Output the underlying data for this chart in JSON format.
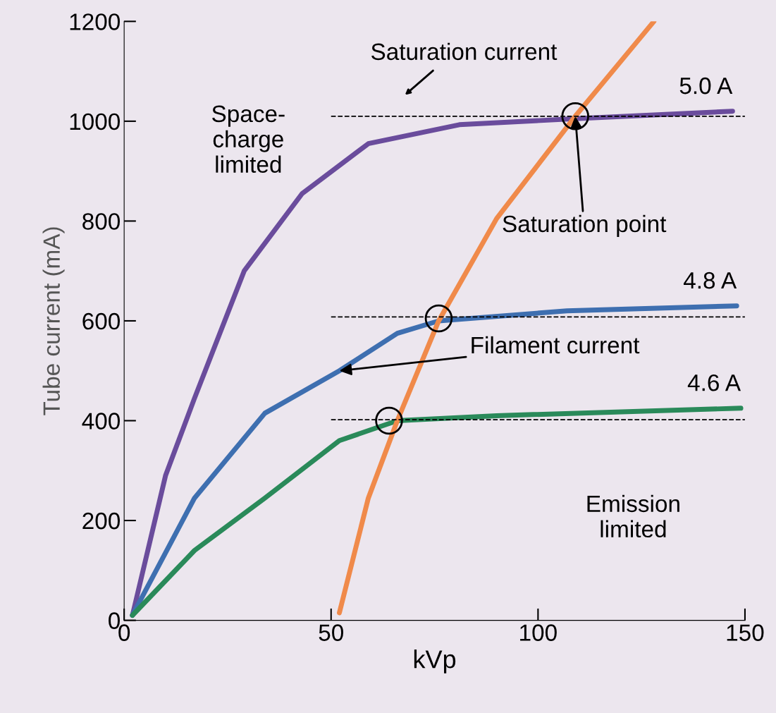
{
  "chart_data": {
    "type": "line",
    "xlabel": "kVp",
    "ylabel": "Tube current (mA)",
    "xlim": [
      0,
      150
    ],
    "ylim": [
      0,
      1200
    ],
    "xticks": [
      0,
      50,
      100,
      150
    ],
    "yticks": [
      0,
      200,
      400,
      600,
      800,
      1000,
      1200
    ],
    "grid": false,
    "legend": false,
    "marker": "none",
    "line_style": "solid",
    "series": [
      {
        "name": "5.0 A",
        "color": "#6a4c9c",
        "x": [
          2,
          10,
          17,
          29,
          43,
          59,
          81,
          109,
          147
        ],
        "values": [
          10,
          290,
          445,
          700,
          855,
          955,
          993,
          1005,
          1020
        ]
      },
      {
        "name": "4.8 A",
        "color": "#3e6fb0",
        "x": [
          2,
          17,
          34,
          52,
          66,
          76,
          107,
          148
        ],
        "values": [
          10,
          245,
          415,
          500,
          575,
          600,
          620,
          630
        ]
      },
      {
        "name": "4.6 A",
        "color": "#2a8a5a",
        "x": [
          2,
          17,
          34,
          52,
          66,
          90,
          149
        ],
        "values": [
          10,
          140,
          245,
          360,
          400,
          410,
          425
        ]
      },
      {
        "color": "#f08a4a",
        "x": [
          52,
          59,
          66,
          76,
          90,
          109,
          124,
          128
        ],
        "values": [
          15,
          245,
          400,
          600,
          805,
          1010,
          1160,
          1200
        ]
      },
      {
        "type": "line",
        "line_style": "dashed",
        "color": "#000000",
        "x": [
          50,
          150
        ],
        "values": [
          1010,
          1010
        ]
      },
      {
        "type": "line",
        "line_style": "dashed",
        "color": "#000000",
        "x": [
          50,
          150
        ],
        "values": [
          608,
          608
        ]
      },
      {
        "type": "line",
        "line_style": "dashed",
        "color": "#000000",
        "x": [
          50,
          150
        ],
        "values": [
          402,
          402
        ]
      },
      {
        "type": "scatter",
        "marker": "circle",
        "color": "#000000",
        "x": [
          109,
          76,
          64
        ],
        "values": [
          1010,
          605,
          400
        ]
      }
    ],
    "annotations": [
      "Saturation current",
      {
        "text": "Saturation point",
        "x": 109,
        "y": 1010
      },
      {
        "text": "Filament current",
        "x": 52,
        "y": 500
      },
      "Space-\ncharge\nlimited",
      "Emission\nlimited"
    ]
  }
}
